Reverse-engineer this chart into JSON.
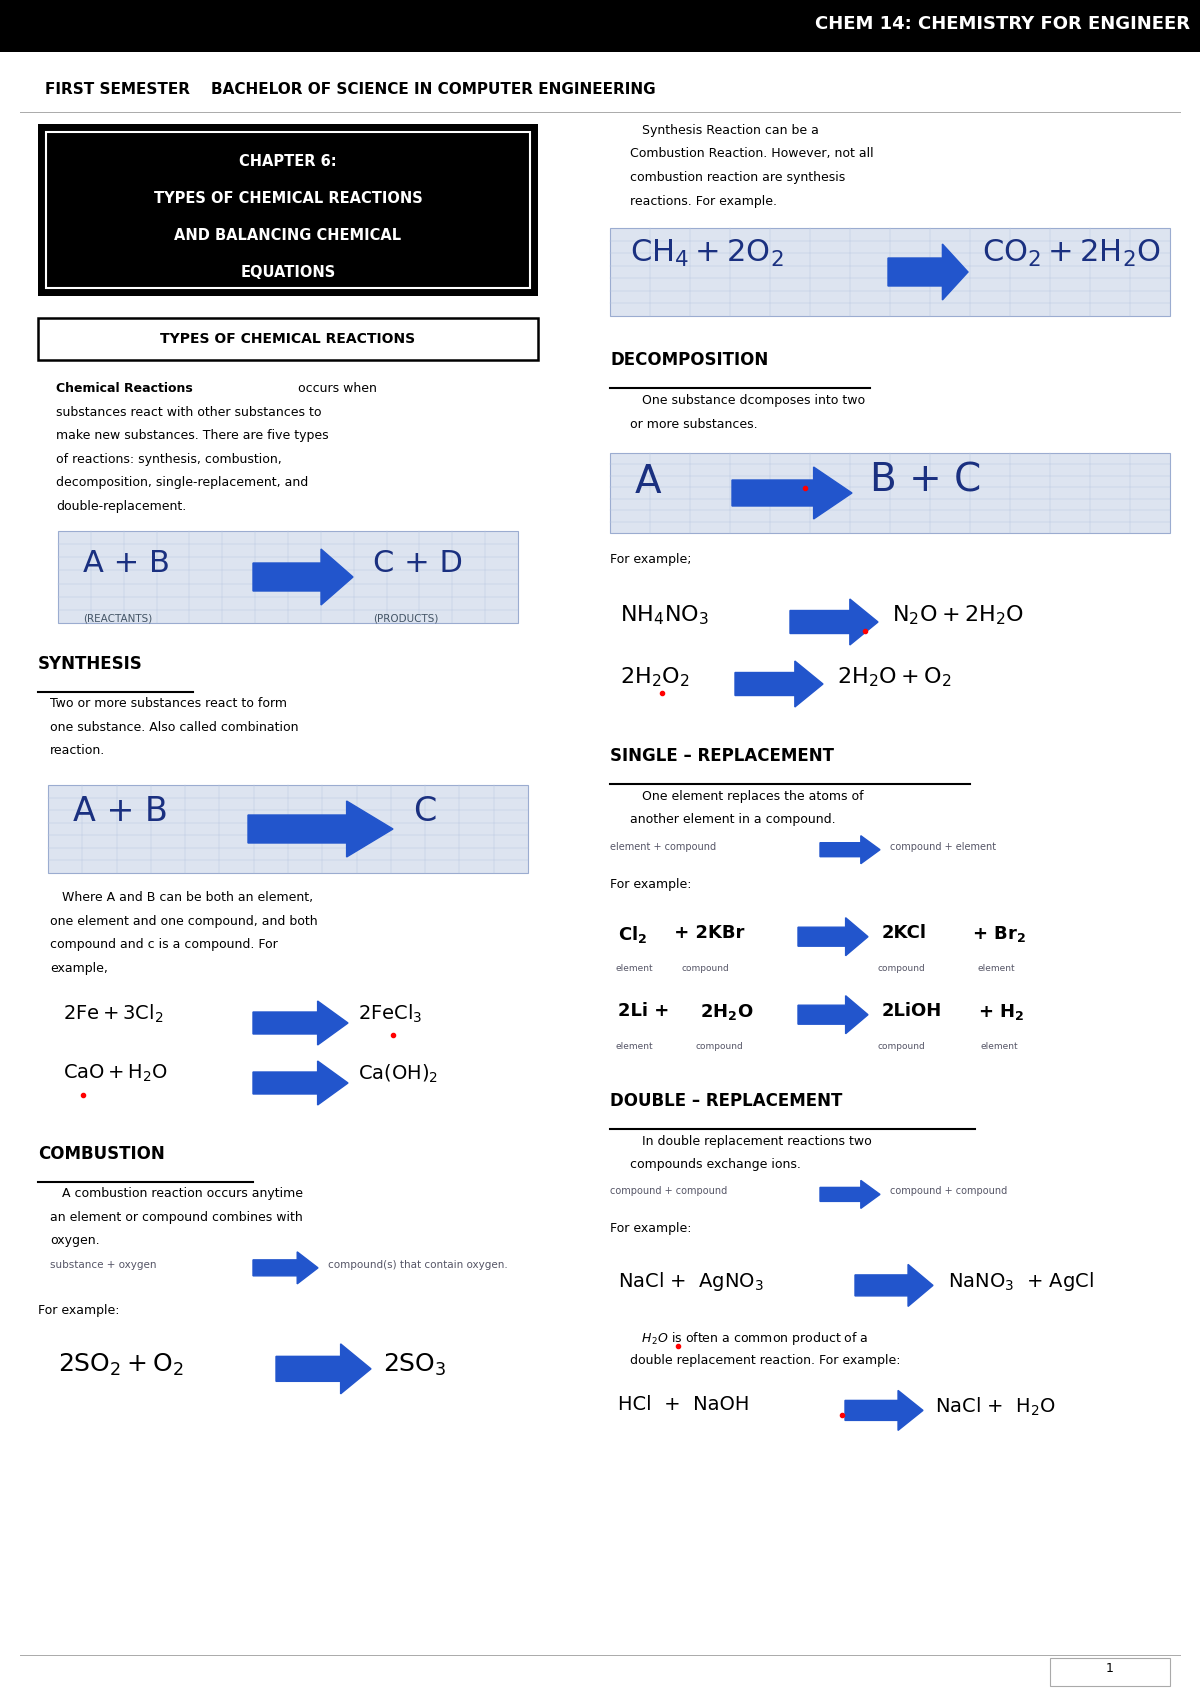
{
  "header_bg": "#000000",
  "header_text": "CHEM 14: CHEMISTRY FOR ENGINEER",
  "header_text_color": "#ffffff",
  "subheader_text": "FIRST SEMESTER    BACHELOR OF SCIENCE IN COMPUTER ENGINEERING",
  "bg_color": "#ffffff",
  "blue_arrow_color": "#2255cc",
  "grid_bg": "#dde4f0",
  "dark_blue_text": "#1a3080",
  "page_number": "1"
}
